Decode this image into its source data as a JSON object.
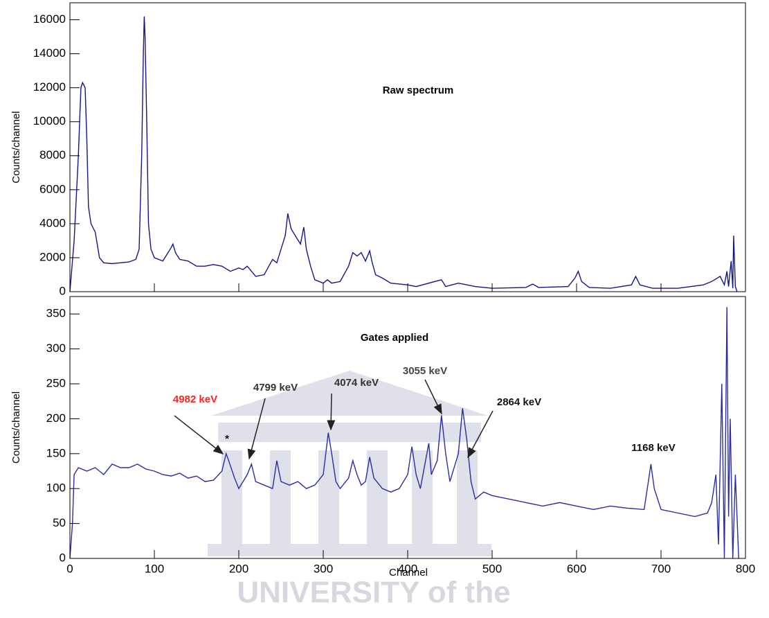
{
  "chart_data": [
    {
      "type": "line",
      "title": "Raw spectrum",
      "y_label": "Counts/channel",
      "color": "#15158a",
      "x": [
        0,
        5,
        10,
        13,
        15,
        18,
        20,
        22,
        25,
        30,
        35,
        40,
        50,
        60,
        70,
        78,
        82,
        85,
        87,
        88,
        89,
        91,
        93,
        96,
        100,
        110,
        115,
        120,
        122,
        125,
        130,
        140,
        150,
        160,
        170,
        180,
        190,
        200,
        205,
        210,
        215,
        220,
        230,
        240,
        245,
        250,
        255,
        258,
        262,
        268,
        273,
        277,
        280,
        285,
        290,
        300,
        305,
        310,
        320,
        330,
        335,
        340,
        345,
        350,
        355,
        358,
        362,
        370,
        380,
        400,
        410,
        440,
        445,
        460,
        480,
        500,
        540,
        548,
        555,
        590,
        598,
        602,
        606,
        615,
        640,
        665,
        670,
        675,
        690,
        720,
        750,
        760,
        770,
        775,
        778,
        780,
        783,
        785,
        786,
        788,
        790
      ],
      "values": [
        0,
        3000,
        8000,
        12000,
        12300,
        12000,
        9000,
        5000,
        4000,
        3500,
        2000,
        1700,
        1650,
        1700,
        1750,
        1900,
        2500,
        8000,
        14000,
        16200,
        15000,
        10000,
        4000,
        2500,
        2000,
        1800,
        2200,
        2600,
        2800,
        2300,
        1900,
        1800,
        1500,
        1500,
        1600,
        1500,
        1200,
        1400,
        1300,
        1500,
        1200,
        900,
        1000,
        1900,
        1700,
        2500,
        3300,
        4600,
        3700,
        3200,
        2800,
        3800,
        2500,
        1500,
        700,
        500,
        700,
        500,
        600,
        1500,
        2300,
        2100,
        2300,
        1800,
        2400,
        1700,
        1000,
        800,
        500,
        400,
        300,
        700,
        300,
        500,
        300,
        200,
        250,
        450,
        250,
        300,
        800,
        1200,
        600,
        250,
        200,
        400,
        900,
        400,
        200,
        200,
        400,
        600,
        900,
        400,
        1200,
        300,
        1800,
        200,
        3300,
        300,
        0
      ],
      "xlim": [
        0,
        800
      ],
      "xticks": [
        0,
        100,
        200,
        300,
        400,
        500,
        600,
        700,
        800
      ],
      "ylim": [
        0,
        17000
      ],
      "yticks": [
        0,
        2000,
        4000,
        6000,
        8000,
        10000,
        12000,
        14000,
        16000
      ]
    },
    {
      "type": "line",
      "title": "Gates applied",
      "x_label": "Channel",
      "y_label": "Counts/channel",
      "color": "#2b2ba3",
      "x": [
        0,
        3,
        5,
        10,
        20,
        30,
        40,
        50,
        60,
        70,
        80,
        90,
        100,
        110,
        120,
        130,
        140,
        150,
        160,
        170,
        180,
        185,
        188,
        195,
        200,
        210,
        215,
        220,
        230,
        240,
        245,
        250,
        260,
        270,
        280,
        290,
        300,
        306,
        310,
        315,
        320,
        330,
        335,
        340,
        345,
        350,
        355,
        360,
        370,
        380,
        390,
        400,
        405,
        410,
        415,
        425,
        428,
        435,
        440,
        445,
        450,
        460,
        465,
        470,
        475,
        480,
        490,
        500,
        520,
        540,
        560,
        580,
        600,
        620,
        640,
        660,
        680,
        685,
        688,
        692,
        700,
        720,
        740,
        755,
        760,
        765,
        768,
        772,
        775,
        778,
        780,
        782,
        785,
        788,
        792
      ],
      "values": [
        0,
        50,
        120,
        130,
        125,
        130,
        120,
        135,
        130,
        130,
        135,
        128,
        125,
        120,
        118,
        122,
        115,
        118,
        110,
        112,
        125,
        150,
        140,
        115,
        100,
        120,
        135,
        110,
        105,
        100,
        140,
        110,
        105,
        110,
        100,
        105,
        120,
        180,
        150,
        110,
        100,
        115,
        140,
        120,
        105,
        110,
        145,
        115,
        100,
        95,
        100,
        120,
        160,
        120,
        100,
        165,
        120,
        140,
        205,
        150,
        110,
        150,
        215,
        170,
        110,
        85,
        95,
        90,
        85,
        80,
        75,
        80,
        75,
        70,
        75,
        72,
        70,
        110,
        135,
        100,
        70,
        65,
        60,
        65,
        80,
        120,
        20,
        250,
        0,
        360,
        60,
        200,
        0,
        120,
        0
      ],
      "xlim": [
        0,
        800
      ],
      "xticks": [
        0,
        100,
        200,
        300,
        400,
        500,
        600,
        700,
        800
      ],
      "ylim": [
        0,
        375
      ],
      "yticks": [
        0,
        50,
        100,
        150,
        200,
        250,
        300,
        350
      ],
      "annotations": [
        {
          "text": "4982 keV",
          "color": "#ff2020"
        },
        {
          "text": "4799 keV",
          "color": "#333333"
        },
        {
          "text": "4074 keV",
          "color": "#333333"
        },
        {
          "text": "3055 keV",
          "color": "#444444"
        },
        {
          "text": "2864 keV",
          "color": "#111111"
        },
        {
          "text": "1168 keV",
          "color": "#111111"
        },
        {
          "text": "*",
          "color": "#111111"
        }
      ],
      "watermark": "UNIVERSITY of the"
    }
  ]
}
